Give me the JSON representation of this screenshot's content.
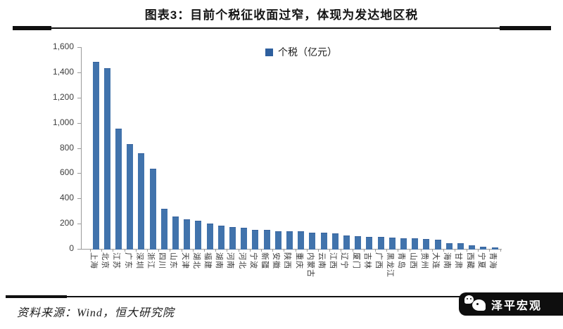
{
  "header": {
    "title": "图表3：目前个税征收面过窄，体现为发达地区税"
  },
  "legend": {
    "label": "个税（亿元）"
  },
  "chart_data": {
    "type": "bar",
    "title": "图表3：目前个税征收面过窄，体现为发达地区税",
    "legend_entries": [
      "个税（亿元）"
    ],
    "legend_position": "top-center",
    "grid": false,
    "xlabel": "",
    "ylabel": "",
    "ylim": [
      0,
      1600
    ],
    "ytick_labels": [
      "0",
      "200",
      "400",
      "600",
      "800",
      "1,000",
      "1,200",
      "1,400",
      "1,600"
    ],
    "bar_color": "#4173ac",
    "categories": [
      "上海",
      "北京",
      "江苏",
      "广东",
      "深圳",
      "浙江",
      "四川",
      "山东",
      "天津",
      "湖北",
      "福建",
      "湖南",
      "河南",
      "河北",
      "宁波",
      "新疆",
      "安徽",
      "陕西",
      "重庆",
      "内蒙古",
      "云南",
      "江西",
      "辽宁",
      "厦门",
      "吉林",
      "广西",
      "黑龙江",
      "青岛",
      "山西",
      "贵州",
      "大连",
      "海南",
      "甘肃",
      "西藏",
      "宁夏",
      "青海"
    ],
    "values": [
      1485,
      1430,
      955,
      830,
      760,
      635,
      320,
      255,
      235,
      222,
      200,
      185,
      175,
      168,
      152,
      148,
      142,
      140,
      138,
      130,
      128,
      120,
      108,
      100,
      97,
      95,
      88,
      85,
      82,
      80,
      72,
      46,
      43,
      26,
      15,
      10
    ]
  },
  "footer": {
    "source": "资料来源：Wind，恒大研究院",
    "watermark": "泽平宏观"
  }
}
